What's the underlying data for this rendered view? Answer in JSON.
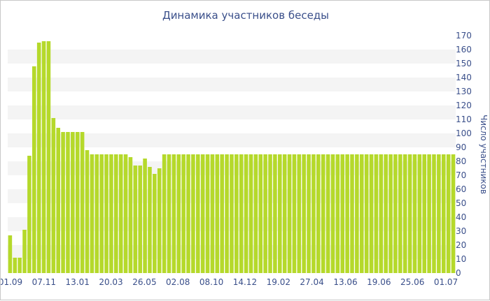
{
  "chart_data": {
    "type": "bar",
    "title": "Динамика участников беседы",
    "xlabel": "",
    "ylabel": "Число участников",
    "ylim": [
      0,
      170
    ],
    "ytick_step": 10,
    "grid": "horizontal alternating bands",
    "legend": "none",
    "x_tick_labels": [
      "01.09",
      "07.11",
      "13.01",
      "20.03",
      "26.05",
      "02.08",
      "08.10",
      "14.12",
      "19.02",
      "27.04",
      "13.06",
      "19.06",
      "25.06",
      "01.07"
    ],
    "bar_color": "#b5d92b",
    "values": [
      27,
      11,
      11,
      31,
      84,
      148,
      165,
      166,
      166,
      111,
      104,
      101,
      101,
      101,
      101,
      101,
      88,
      85,
      85,
      85,
      85,
      85,
      85,
      85,
      85,
      83,
      77,
      77,
      82,
      76,
      71,
      75,
      85,
      85,
      85,
      85,
      85,
      85,
      85,
      85,
      85,
      85,
      85,
      85,
      85,
      85,
      85,
      85,
      85,
      85,
      85,
      85,
      85,
      85,
      85,
      85,
      85,
      85,
      85,
      85,
      85,
      85,
      85,
      85,
      85,
      85,
      85,
      85,
      85,
      85,
      85,
      85,
      85,
      85,
      85,
      85,
      85,
      85,
      85,
      85,
      85,
      85,
      85,
      85,
      85,
      85,
      85,
      85,
      85,
      85,
      85,
      85,
      85
    ]
  }
}
